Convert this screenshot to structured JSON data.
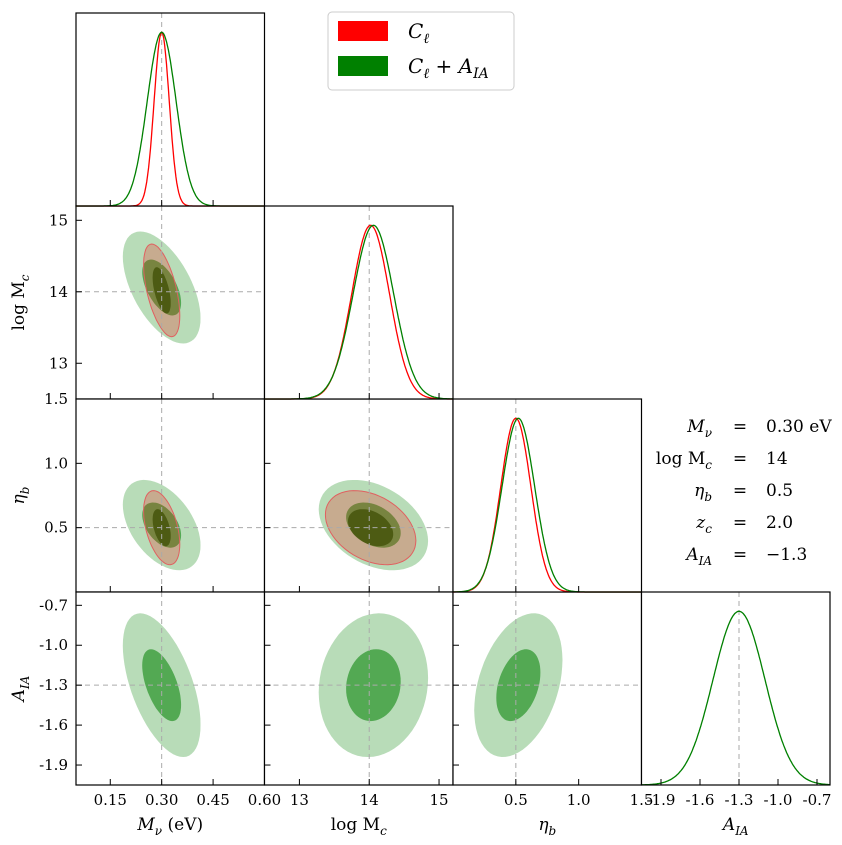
{
  "chart_data": {
    "type": "corner",
    "parameters": [
      {
        "key": "Mnu",
        "label": "M",
        "label_sub": "ν",
        "label_unit": " (eV)",
        "range": [
          0.05,
          0.6
        ],
        "ticks": [
          0.15,
          0.3,
          0.45,
          0.6
        ],
        "tick_labels": [
          "0.15",
          "0.30",
          "0.45",
          "0.60"
        ],
        "fiducial": 0.3
      },
      {
        "key": "logMc",
        "label": "log M",
        "label_sub": "c",
        "label_unit": "",
        "range": [
          12.5,
          15.2
        ],
        "ticks": [
          13,
          14,
          15
        ],
        "tick_labels": [
          "13",
          "14",
          "15"
        ],
        "fiducial": 14.0
      },
      {
        "key": "eta_b",
        "label": "η",
        "label_sub": "b",
        "label_unit": "",
        "range": [
          0.0,
          1.5
        ],
        "ticks": [
          0.5,
          1.0,
          1.5
        ],
        "tick_labels": [
          "0.5",
          "1.0",
          "1.5"
        ],
        "fiducial": 0.5
      },
      {
        "key": "AIA",
        "label": "A",
        "label_sub": "IA",
        "label_unit": "",
        "range": [
          -2.05,
          -0.6
        ],
        "ticks": [
          -1.9,
          -1.6,
          -1.3,
          -1.0,
          -0.7
        ],
        "tick_labels": [
          "-1.9",
          "-1.6",
          "-1.3",
          "-1.0",
          "-0.7"
        ],
        "fiducial": -1.3
      }
    ],
    "series": [
      {
        "name": "C_ℓ",
        "legend_main": "C",
        "legend_sub": "ℓ",
        "legend_extra": "",
        "color": "#ff0000",
        "contour_color": "#a58a2e"
      },
      {
        "name": "C_ℓ + A_IA",
        "legend_main": "C",
        "legend_sub": "ℓ",
        "legend_extra": " + A",
        "legend_extra_sub": "IA",
        "color": "#008000",
        "contour_color": "#2e9e3a"
      }
    ],
    "marginals": {
      "Mnu": {
        "C_l": {
          "mean": 0.3,
          "sigma": 0.022
        },
        "C_l+A_IA": {
          "mean": 0.3,
          "sigma": 0.042
        }
      },
      "logMc": {
        "C_l": {
          "mean": 14.02,
          "sigma": 0.27
        },
        "C_l+A_IA": {
          "mean": 14.06,
          "sigma": 0.29
        }
      },
      "eta_b": {
        "C_l": {
          "mean": 0.5,
          "sigma": 0.12
        },
        "C_l+A_IA": {
          "mean": 0.52,
          "sigma": 0.13
        }
      },
      "AIA": {
        "C_l+A_IA": {
          "mean": -1.3,
          "sigma": 0.2
        }
      }
    },
    "fiducials_table": [
      {
        "symbol": "M",
        "sub": "ν",
        "value": "0.30 eV"
      },
      {
        "symbol": "log M",
        "sub": "c",
        "value": "14"
      },
      {
        "symbol": "η",
        "sub": "b",
        "value": "0.5"
      },
      {
        "symbol": "z",
        "sub": "c",
        "value": "2.0"
      },
      {
        "symbol": "A",
        "sub": "IA",
        "value": "−1.3"
      }
    ],
    "equals_sign": "="
  }
}
